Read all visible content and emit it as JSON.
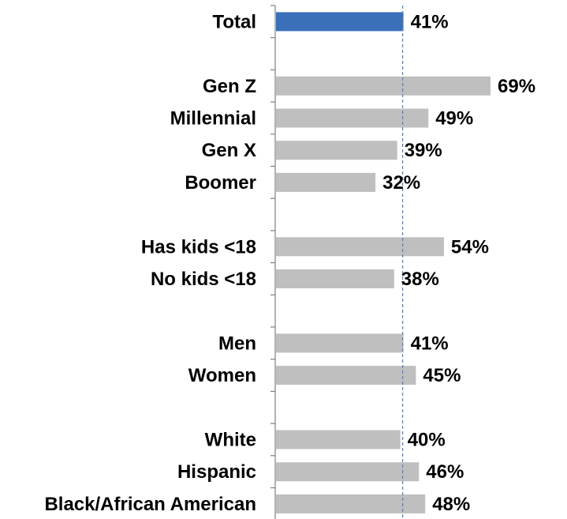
{
  "chart_data": {
    "type": "bar",
    "orientation": "horizontal",
    "categories": [
      "Total",
      "",
      "Gen Z",
      "Millennial",
      "Gen X",
      "Boomer",
      "",
      "Has kids <18",
      "No kids <18",
      "",
      "Men",
      "Women",
      "",
      "White",
      "Hispanic",
      "Black/African American"
    ],
    "values": [
      41,
      null,
      69,
      49,
      39,
      32,
      null,
      54,
      38,
      null,
      41,
      45,
      null,
      40,
      46,
      48
    ],
    "value_labels": [
      "41%",
      "",
      "69%",
      "49%",
      "39%",
      "32%",
      "",
      "54%",
      "38%",
      "",
      "41%",
      "45%",
      "",
      "40%",
      "46%",
      "48%"
    ],
    "highlight_index": 0,
    "reference_line": 41,
    "xlim": [
      0,
      80
    ],
    "colors": {
      "highlight": "#3a6fba",
      "bar": "#bfbfbf",
      "reference": "#5b7fa8",
      "axis": "#7f7f7f"
    },
    "title": "",
    "xlabel": "",
    "ylabel": "",
    "grid": false,
    "legend": "none"
  }
}
